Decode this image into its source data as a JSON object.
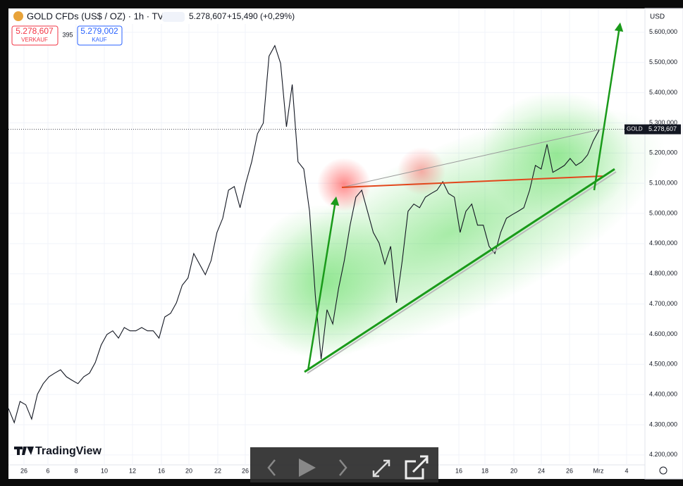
{
  "header": {
    "symbol": "GOLD CFDs (US$ / OZ) · 1h · TVC",
    "price": "5.278,607",
    "change": "+15,490 (+0,29%)"
  },
  "order": {
    "sell": "5.278,607",
    "sell_label": "VERKAUF",
    "spread": "395",
    "buy": "5.279,002",
    "buy_label": "KAUF"
  },
  "currency": "USD",
  "logo": "TradingView",
  "chart_data": {
    "type": "line",
    "color": "#131722",
    "values": [
      4354,
      4307,
      4377,
      4366,
      4319,
      4401,
      4436,
      4459,
      4471,
      4482,
      4459,
      4447,
      4436,
      4459,
      4471,
      4506,
      4564,
      4599,
      4611,
      4587,
      4622,
      4611,
      4611,
      4622,
      4611,
      4611,
      4587,
      4657,
      4669,
      4704,
      4762,
      4786,
      4867,
      4832,
      4797,
      4844,
      4937,
      4984,
      5077,
      5089,
      5019,
      5101,
      5171,
      5264,
      5299,
      5521,
      5556,
      5497,
      5287,
      5427,
      5171,
      5147,
      5007,
      4727,
      4517,
      4681,
      4634,
      4751,
      4844,
      4961,
      5054,
      5077,
      5007,
      4937,
      4902,
      4832,
      4891,
      4704,
      4844,
      5007,
      5031,
      5019,
      5054,
      5066,
      5077,
      5105,
      5066,
      5054,
      4937,
      5007,
      5031,
      4961,
      4961,
      4891,
      4867,
      4937,
      4984,
      4996,
      5007,
      5019,
      5077,
      5159,
      5147,
      5229,
      5136,
      5147,
      5159,
      5182,
      5159,
      5171,
      5194,
      5241,
      5276
    ],
    "ylim": [
      4167,
      5679
    ],
    "yticks": [
      {
        "value": 4200,
        "label": "4.200,000"
      },
      {
        "value": 4300,
        "label": "4.300,000"
      },
      {
        "value": 4400,
        "label": "4.400,000"
      },
      {
        "value": 4500,
        "label": "4.500,000"
      },
      {
        "value": 4600,
        "label": "4.600,000"
      },
      {
        "value": 4700,
        "label": "4.700,000"
      },
      {
        "value": 4800,
        "label": "4.800,000"
      },
      {
        "value": 4900,
        "label": "4.900,000"
      },
      {
        "value": 5000,
        "label": "5.000,000"
      },
      {
        "value": 5100,
        "label": "5.100,000"
      },
      {
        "value": 5200,
        "label": "5.200,000"
      },
      {
        "value": 5300,
        "label": "5.300,000"
      },
      {
        "value": 5400,
        "label": "5.400,000"
      },
      {
        "value": 5500,
        "label": "5.500,000"
      },
      {
        "value": 5600,
        "label": "5.600,000"
      }
    ],
    "x_labels": [
      "26",
      "6",
      "8",
      "10",
      "12",
      "16",
      "20",
      "22",
      "26",
      "16",
      "18",
      "20",
      "24",
      "26",
      "Mrz",
      "4"
    ],
    "price_line": {
      "name": "GOLD",
      "value": 5278.607,
      "label": "5.278,607"
    },
    "grid": true
  }
}
